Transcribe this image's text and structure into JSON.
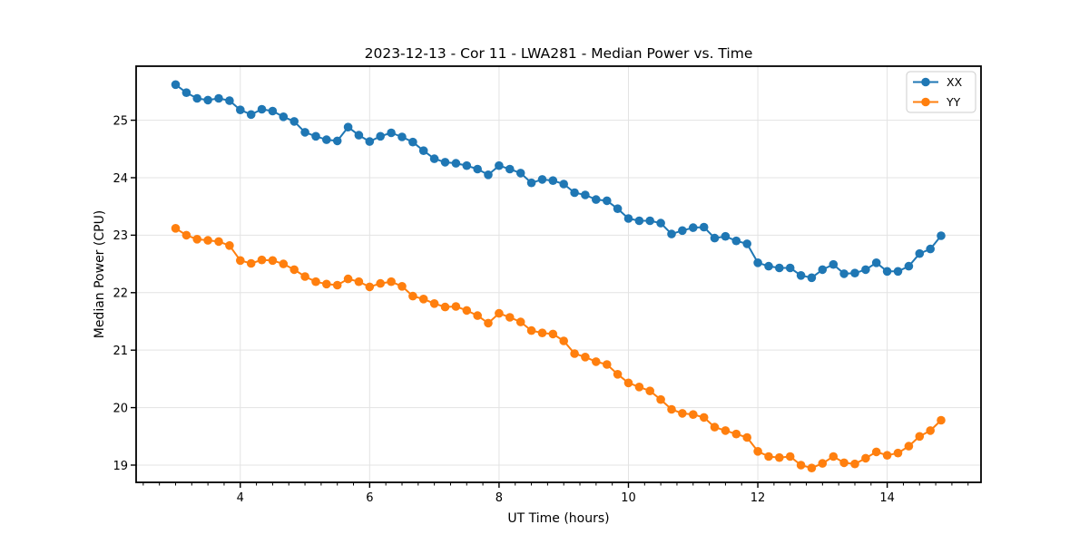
{
  "chart_data": {
    "type": "line",
    "title": "2023-12-13 - Cor 11 - LWA281 - Median Power vs. Time",
    "xlabel": "UT Time (hours)",
    "ylabel": "Median Power (CPU)",
    "xlim": [
      2.39,
      15.45
    ],
    "ylim": [
      18.7,
      25.94
    ],
    "x_ticks": [
      4,
      6,
      8,
      10,
      12,
      14
    ],
    "x_minor_tick_step": 0.25,
    "y_ticks": [
      19,
      20,
      21,
      22,
      23,
      24,
      25
    ],
    "grid": true,
    "legend_position": "upper right",
    "colors": {
      "grid": "#e3e3e3",
      "spine": "#000000",
      "background": "#ffffff"
    },
    "x": [
      3.0,
      3.167,
      3.333,
      3.5,
      3.667,
      3.833,
      4.0,
      4.167,
      4.333,
      4.5,
      4.667,
      4.833,
      5.0,
      5.167,
      5.333,
      5.5,
      5.667,
      5.833,
      6.0,
      6.167,
      6.333,
      6.5,
      6.667,
      6.833,
      7.0,
      7.167,
      7.333,
      7.5,
      7.667,
      7.833,
      8.0,
      8.167,
      8.333,
      8.5,
      8.667,
      8.833,
      9.0,
      9.167,
      9.333,
      9.5,
      9.667,
      9.833,
      10.0,
      10.167,
      10.333,
      10.5,
      10.667,
      10.833,
      11.0,
      11.167,
      11.333,
      11.5,
      11.667,
      11.833,
      12.0,
      12.167,
      12.333,
      12.5,
      12.667,
      12.833,
      13.0,
      13.167,
      13.333,
      13.5,
      13.667,
      13.833,
      14.0,
      14.167,
      14.333,
      14.5,
      14.667,
      14.833
    ],
    "series": [
      {
        "name": "XX",
        "color": "#1f77b4",
        "values": [
          25.62,
          25.48,
          25.38,
          25.35,
          25.38,
          25.34,
          25.18,
          25.1,
          25.19,
          25.16,
          25.06,
          24.98,
          24.79,
          24.72,
          24.66,
          24.64,
          24.88,
          24.74,
          24.63,
          24.72,
          24.78,
          24.71,
          24.62,
          24.47,
          24.33,
          24.27,
          24.25,
          24.21,
          24.15,
          24.05,
          24.21,
          24.15,
          24.08,
          23.91,
          23.97,
          23.95,
          23.89,
          23.74,
          23.7,
          23.62,
          23.6,
          23.46,
          23.29,
          23.25,
          23.25,
          23.21,
          23.02,
          23.08,
          23.13,
          23.14,
          22.95,
          22.98,
          22.9,
          22.85,
          22.52,
          22.46,
          22.43,
          22.43,
          22.3,
          22.26,
          22.4,
          22.49,
          22.33,
          22.34,
          22.4,
          22.52,
          22.37,
          22.37,
          22.46,
          22.68,
          22.76,
          22.99
        ]
      },
      {
        "name": "YY",
        "color": "#ff7f0e",
        "values": [
          23.12,
          23.0,
          22.93,
          22.91,
          22.89,
          22.82,
          22.56,
          22.51,
          22.57,
          22.56,
          22.5,
          22.4,
          22.28,
          22.19,
          22.15,
          22.13,
          22.24,
          22.19,
          22.1,
          22.16,
          22.19,
          22.11,
          21.94,
          21.89,
          21.81,
          21.75,
          21.76,
          21.69,
          21.6,
          21.47,
          21.64,
          21.57,
          21.49,
          21.34,
          21.3,
          21.28,
          21.16,
          20.94,
          20.88,
          20.8,
          20.75,
          20.58,
          20.43,
          20.36,
          20.29,
          20.14,
          19.97,
          19.9,
          19.88,
          19.83,
          19.66,
          19.6,
          19.54,
          19.48,
          19.24,
          19.15,
          19.13,
          19.15,
          19.0,
          18.95,
          19.03,
          19.15,
          19.04,
          19.02,
          19.12,
          19.23,
          19.17,
          19.21,
          19.33,
          19.5,
          19.6,
          19.78
        ]
      }
    ]
  }
}
